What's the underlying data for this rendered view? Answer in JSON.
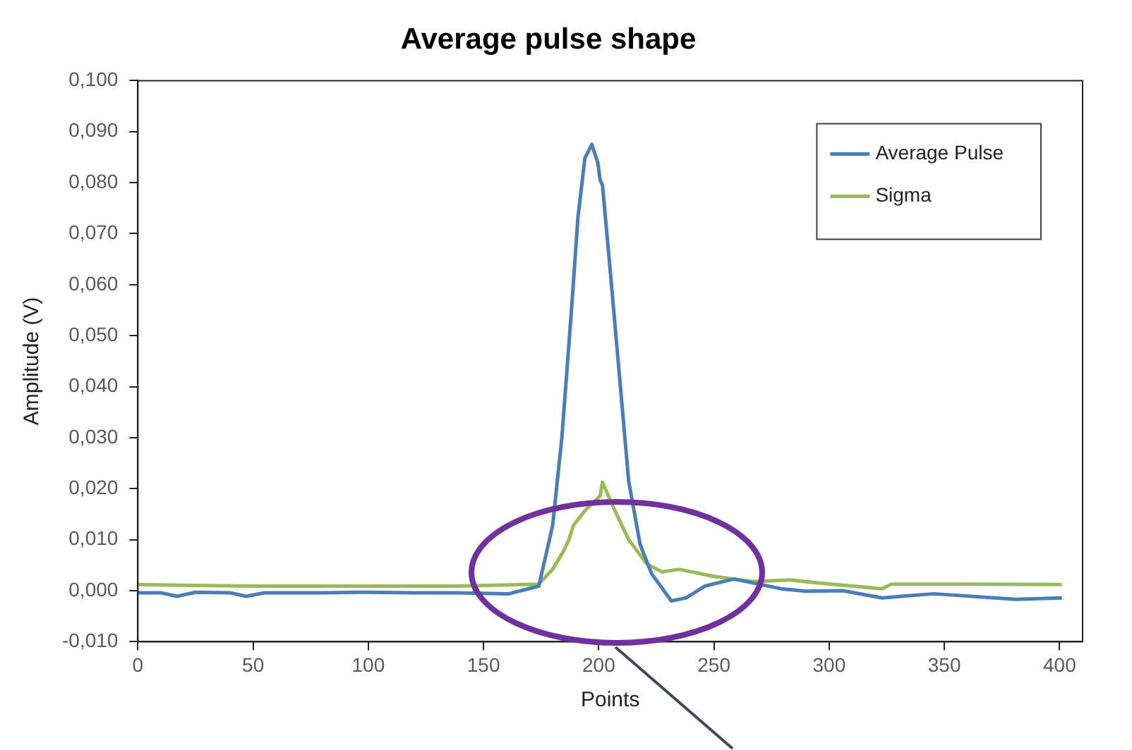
{
  "chart_data": {
    "type": "line",
    "title": "Average pulse shape",
    "xlabel": "Points",
    "ylabel": "Amplitude (V)",
    "xlim": [
      0,
      410
    ],
    "xticks": [
      0,
      50,
      100,
      150,
      200,
      250,
      300,
      350,
      400
    ],
    "ylim": [
      -0.01,
      0.1
    ],
    "yticks": [
      {
        "value": -0.01,
        "label": "-0,010"
      },
      {
        "value": 0,
        "label": "0,000"
      },
      {
        "value": 0.01,
        "label": "0,010"
      },
      {
        "value": 0.02,
        "label": "0,020"
      },
      {
        "value": 0.03,
        "label": "0,030"
      },
      {
        "value": 0.04,
        "label": "0,040"
      },
      {
        "value": 0.05,
        "label": "0,050"
      },
      {
        "value": 0.06,
        "label": "0,060"
      },
      {
        "value": 0.07,
        "label": "0,070"
      },
      {
        "value": 0.08,
        "label": "0,080"
      },
      {
        "value": 0.09,
        "label": "0,090"
      },
      {
        "value": 0.1,
        "label": "0,100"
      }
    ],
    "grid": false,
    "legend": "top right",
    "marker": "none",
    "line_style": "solid",
    "series": [
      {
        "name": "Average Pulse",
        "color": "#4a7ebb",
        "x": [
          0,
          10,
          17,
          25,
          40,
          47,
          55,
          80,
          100,
          120,
          138,
          161,
          174,
          180,
          184,
          188,
          191,
          194,
          197,
          199.6,
          200.6,
          201.6,
          204.8,
          208.9,
          213,
          218,
          223,
          231.5,
          238,
          246,
          258.6,
          279,
          290,
          306,
          323,
          345.5,
          381,
          401
        ],
        "values": [
          -0.0004,
          -0.0004,
          -0.0011,
          -0.0003,
          -0.0004,
          -0.0011,
          -0.0004,
          -0.0004,
          -0.0003,
          -0.0004,
          -0.0004,
          -0.0006,
          0.0009,
          0.0128,
          0.03,
          0.054,
          0.0733,
          0.0848,
          0.0875,
          0.0839,
          0.0805,
          0.0796,
          0.0637,
          0.0426,
          0.0215,
          0.009,
          0.0033,
          -0.002,
          -0.0014,
          0.0009,
          0.0023,
          0.0004,
          -0.0001,
          0,
          -0.0014,
          -0.0006,
          -0.0017,
          -0.0014
        ]
      },
      {
        "name": "Sigma",
        "color": "#9bbb59",
        "x": [
          0,
          50,
          100,
          138,
          174,
          180,
          185,
          187,
          189,
          194,
          200.6,
          201.6,
          207,
          213,
          221,
          227.5,
          235,
          250,
          267,
          283,
          296,
          323,
          327,
          360,
          401
        ],
        "values": [
          0.0012,
          0.0009,
          0.0009,
          0.0009,
          0.0013,
          0.0042,
          0.008,
          0.01,
          0.0128,
          0.0157,
          0.0186,
          0.0213,
          0.0157,
          0.01,
          0.0052,
          0.0037,
          0.0042,
          0.0028,
          0.0018,
          0.0021,
          0.0015,
          0.0004,
          0.0013,
          0.0013,
          0.0012
        ]
      }
    ]
  }
}
